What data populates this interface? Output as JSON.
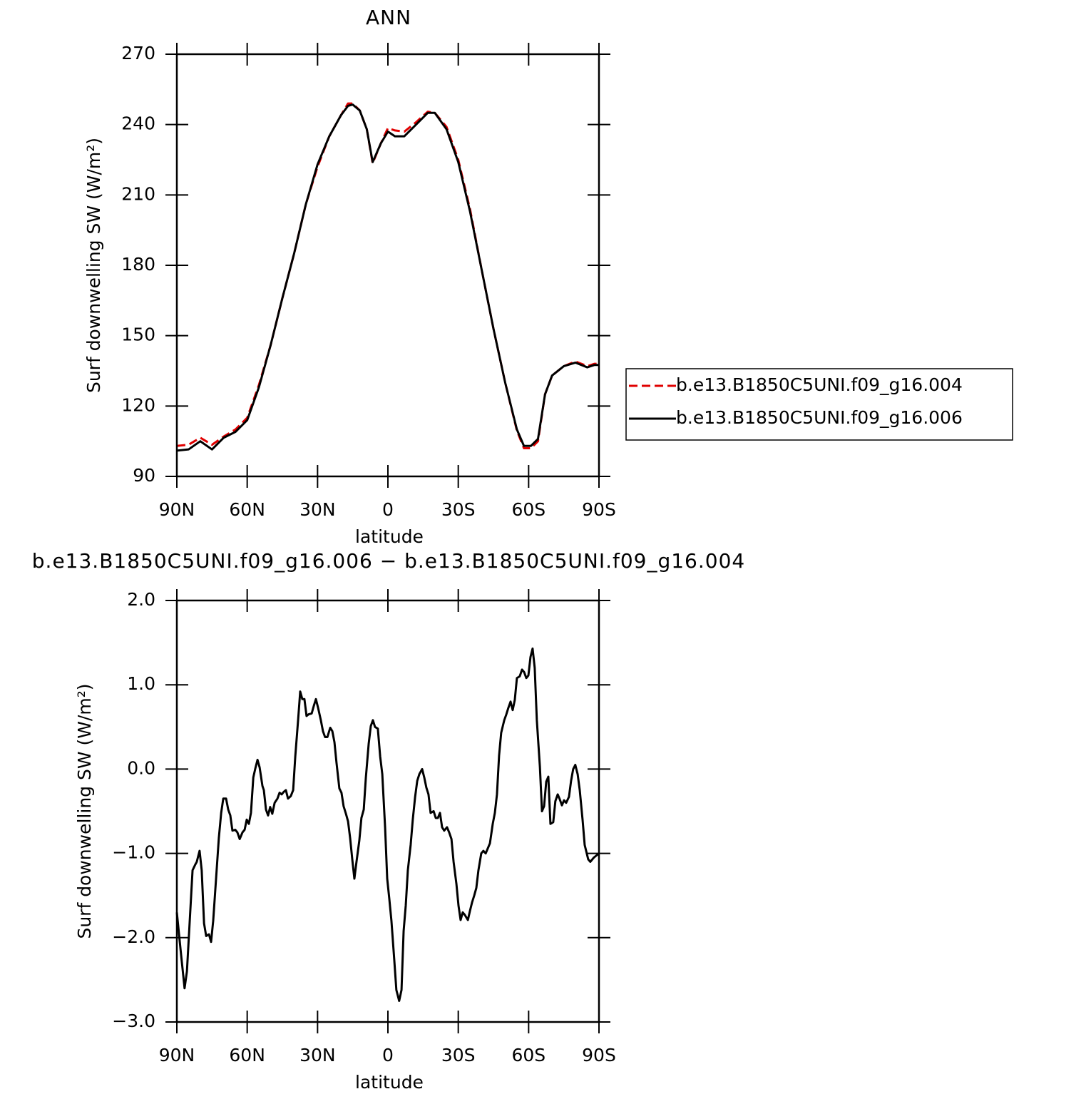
{
  "chart_data": [
    {
      "type": "line",
      "title": "ANN",
      "xlabel": "latitude",
      "ylabel": "Surf downwelling SW (W/m²)",
      "x": [
        90,
        85,
        80,
        75,
        70,
        65,
        60,
        55,
        50,
        45,
        40,
        35,
        30,
        25,
        20,
        17,
        15,
        12,
        9,
        6.5,
        3,
        0,
        -3,
        -7,
        -12,
        -17,
        -20,
        -25,
        -30,
        -35,
        -40,
        -45,
        -50,
        -55,
        -58,
        -61,
        -64,
        -67,
        -70,
        -75,
        -80,
        -85,
        -88,
        -90
      ],
      "series": [
        {
          "name": "b.e13.B1850C5UNI.f09_g16.004",
          "color": "#e00000",
          "line_style": "dashed",
          "values": [
            103,
            103.5,
            106.5,
            103.5,
            107,
            110,
            115,
            129,
            146,
            166,
            185,
            206,
            222,
            235,
            244,
            249,
            249,
            246,
            238,
            223.5,
            232,
            238.5,
            237.5,
            237,
            241,
            245.5,
            245,
            239,
            225,
            204,
            178,
            153,
            130,
            109.5,
            102,
            102,
            105,
            125,
            133,
            137,
            139,
            137,
            138,
            138
          ]
        },
        {
          "name": "b.e13.B1850C5UNI.f09_g16.006",
          "color": "#000000",
          "line_style": "solid",
          "values": [
            101,
            101.5,
            105,
            101.5,
            106.5,
            109,
            114,
            128,
            146,
            166,
            185,
            206,
            223,
            235,
            244,
            248,
            248.5,
            246,
            238,
            224,
            232,
            237,
            235,
            235,
            240,
            245,
            245,
            238,
            224,
            203,
            178,
            153,
            130,
            110,
            103,
            103,
            106,
            125,
            133,
            137,
            138.5,
            136.5,
            137.5,
            137.5
          ]
        }
      ],
      "xlim": [
        90,
        -90
      ],
      "xticks": [
        {
          "value": 90,
          "label": "90N"
        },
        {
          "value": 60,
          "label": "60N"
        },
        {
          "value": 30,
          "label": "30N"
        },
        0,
        {
          "value": -30,
          "label": "30S"
        },
        {
          "value": -60,
          "label": "60S"
        },
        {
          "value": -90,
          "label": "90S"
        }
      ],
      "ylim": [
        90,
        270
      ],
      "yticks": [
        90,
        120,
        150,
        180,
        210,
        240,
        270
      ],
      "legend": "right"
    },
    {
      "type": "line",
      "title": "b.e13.B1850C5UNI.f09_g16.006 − b.e13.B1850C5UNI.f09_g16.004",
      "xlabel": "latitude",
      "ylabel": "Surf downwelling SW (W/m²)",
      "x": [
        90,
        88.2,
        86.7,
        85.7,
        83.3,
        82.1,
        81.5,
        80.3,
        79.4,
        78.4,
        77.5,
        76.3,
        75.4,
        74.5,
        72.1,
        71.1,
        70.2,
        69,
        68.1,
        67.2,
        66.3,
        65.1,
        64.2,
        63.2,
        62,
        61.1,
        60.2,
        59.3,
        58.4,
        57.4,
        56.6,
        55.6,
        54.7,
        53.5,
        52.9,
        52,
        51.1,
        50.2,
        49.3,
        48.3,
        47.1,
        46.2,
        45.3,
        44.4,
        43.5,
        42.6,
        41.4,
        40.4,
        39.5,
        38.3,
        37.4,
        36.5,
        35.6,
        34.7,
        33.8,
        32.5,
        31.6,
        30.7,
        29.8,
        28.6,
        27.7,
        26.8,
        25.8,
        24.6,
        23.7,
        22.8,
        21.9,
        20.7,
        19.8,
        18.9,
        17.9,
        17,
        16.1,
        15.2,
        14.3,
        13.4,
        12.2,
        11.3,
        10.3,
        9.4,
        8.2,
        7.3,
        6.4,
        5.5,
        4.3,
        3.3,
        2.4,
        1.2,
        0.3,
        -0.6,
        -1.5,
        -2.7,
        -3.6,
        -4.8,
        -5.8,
        -6.7,
        -7.6,
        -8.5,
        -9.7,
        -10.6,
        -11.6,
        -12.5,
        -13.4,
        -14.6,
        -15.5,
        -16.4,
        -17.3,
        -18.2,
        -19.5,
        -20.4,
        -21.3,
        -22.2,
        -23.1,
        -24,
        -25.2,
        -26.1,
        -27.1,
        -28,
        -29.2,
        -30.1,
        -31,
        -31.9,
        -32.8,
        -34.1,
        -35,
        -35.9,
        -36.8,
        -37.7,
        -38.6,
        -39.8,
        -40.7,
        -41.7,
        -42.6,
        -43.5,
        -44.7,
        -45.6,
        -46.5,
        -47.4,
        -48.3,
        -49.6,
        -50.5,
        -51.4,
        -52.3,
        -53.2,
        -54.1,
        -55,
        -56.2,
        -57.2,
        -58.1,
        -59,
        -59.9,
        -60.8,
        -61.7,
        -62.6,
        -63.5,
        -64.8,
        -65.7,
        -66.6,
        -67.5,
        -68.4,
        -69.3,
        -70.5,
        -71.4,
        -72.4,
        -73.3,
        -74.2,
        -75.1,
        -76,
        -77.2,
        -78.1,
        -79,
        -79.9,
        -80.9,
        -81.8,
        -83,
        -83.9,
        -85.4,
        -86.3,
        -87.8,
        -90
      ],
      "series": [
        {
          "color": "#000000",
          "line_style": "solid",
          "values": [
            -1.7,
            -2.2,
            -2.6,
            -2.4,
            -1.2,
            -1.13,
            -1.1,
            -0.97,
            -1.2,
            -1.83,
            -1.98,
            -1.96,
            -2.05,
            -1.8,
            -0.82,
            -0.52,
            -0.35,
            -0.35,
            -0.48,
            -0.55,
            -0.73,
            -0.72,
            -0.75,
            -0.83,
            -0.75,
            -0.72,
            -0.6,
            -0.65,
            -0.52,
            -0.1,
            0,
            0.11,
            0.02,
            -0.2,
            -0.25,
            -0.48,
            -0.55,
            -0.45,
            -0.53,
            -0.4,
            -0.35,
            -0.28,
            -0.3,
            -0.27,
            -0.25,
            -0.35,
            -0.32,
            -0.25,
            0.15,
            0.58,
            0.92,
            0.83,
            0.83,
            0.63,
            0.65,
            0.66,
            0.75,
            0.83,
            0.73,
            0.58,
            0.45,
            0.38,
            0.38,
            0.49,
            0.45,
            0.32,
            0.07,
            -0.23,
            -0.28,
            -0.44,
            -0.53,
            -0.62,
            -0.82,
            -1.07,
            -1.3,
            -1.1,
            -0.85,
            -0.58,
            -0.48,
            -0.1,
            0.3,
            0.51,
            0.58,
            0.5,
            0.48,
            0.15,
            -0.06,
            -0.69,
            -1.3,
            -1.54,
            -1.8,
            -2.26,
            -2.62,
            -2.75,
            -2.62,
            -1.92,
            -1.62,
            -1.2,
            -0.9,
            -0.6,
            -0.33,
            -0.14,
            -0.06,
            0,
            -0.1,
            -0.22,
            -0.3,
            -0.52,
            -0.5,
            -0.58,
            -0.58,
            -0.52,
            -0.69,
            -0.73,
            -0.69,
            -0.75,
            -0.83,
            -1.1,
            -1.36,
            -1.62,
            -1.79,
            -1.7,
            -1.73,
            -1.79,
            -1.68,
            -1.58,
            -1.5,
            -1.41,
            -1.2,
            -1,
            -0.97,
            -1,
            -0.94,
            -0.88,
            -0.65,
            -0.52,
            -0.3,
            0.16,
            0.43,
            0.58,
            0.65,
            0.73,
            0.8,
            0.7,
            0.82,
            1.08,
            1.1,
            1.18,
            1.15,
            1.08,
            1.11,
            1.33,
            1.43,
            1.2,
            0.58,
            0.03,
            -0.5,
            -0.44,
            -0.15,
            -0.09,
            -0.65,
            -0.63,
            -0.38,
            -0.3,
            -0.36,
            -0.43,
            -0.37,
            -0.4,
            -0.33,
            -0.14,
            0,
            0.05,
            -0.06,
            -0.25,
            -0.6,
            -0.9,
            -1.07,
            -1.1,
            -1.05,
            -1
          ]
        }
      ],
      "xlim": [
        90,
        -90
      ],
      "xticks": [
        {
          "value": 90,
          "label": "90N"
        },
        {
          "value": 60,
          "label": "60N"
        },
        {
          "value": 30,
          "label": "30N"
        },
        0,
        {
          "value": -30,
          "label": "30S"
        },
        {
          "value": -60,
          "label": "60S"
        },
        {
          "value": -90,
          "label": "90S"
        }
      ],
      "ylim": [
        -3,
        2
      ],
      "yticks": [
        {
          "value": -3,
          "label": "−3.0"
        },
        {
          "value": -2,
          "label": "−2.0"
        },
        {
          "value": -1,
          "label": "−1.0"
        },
        {
          "value": 0,
          "label": "0.0"
        },
        {
          "value": 1,
          "label": "1.0"
        },
        {
          "value": 2,
          "label": "2.0"
        }
      ]
    }
  ]
}
